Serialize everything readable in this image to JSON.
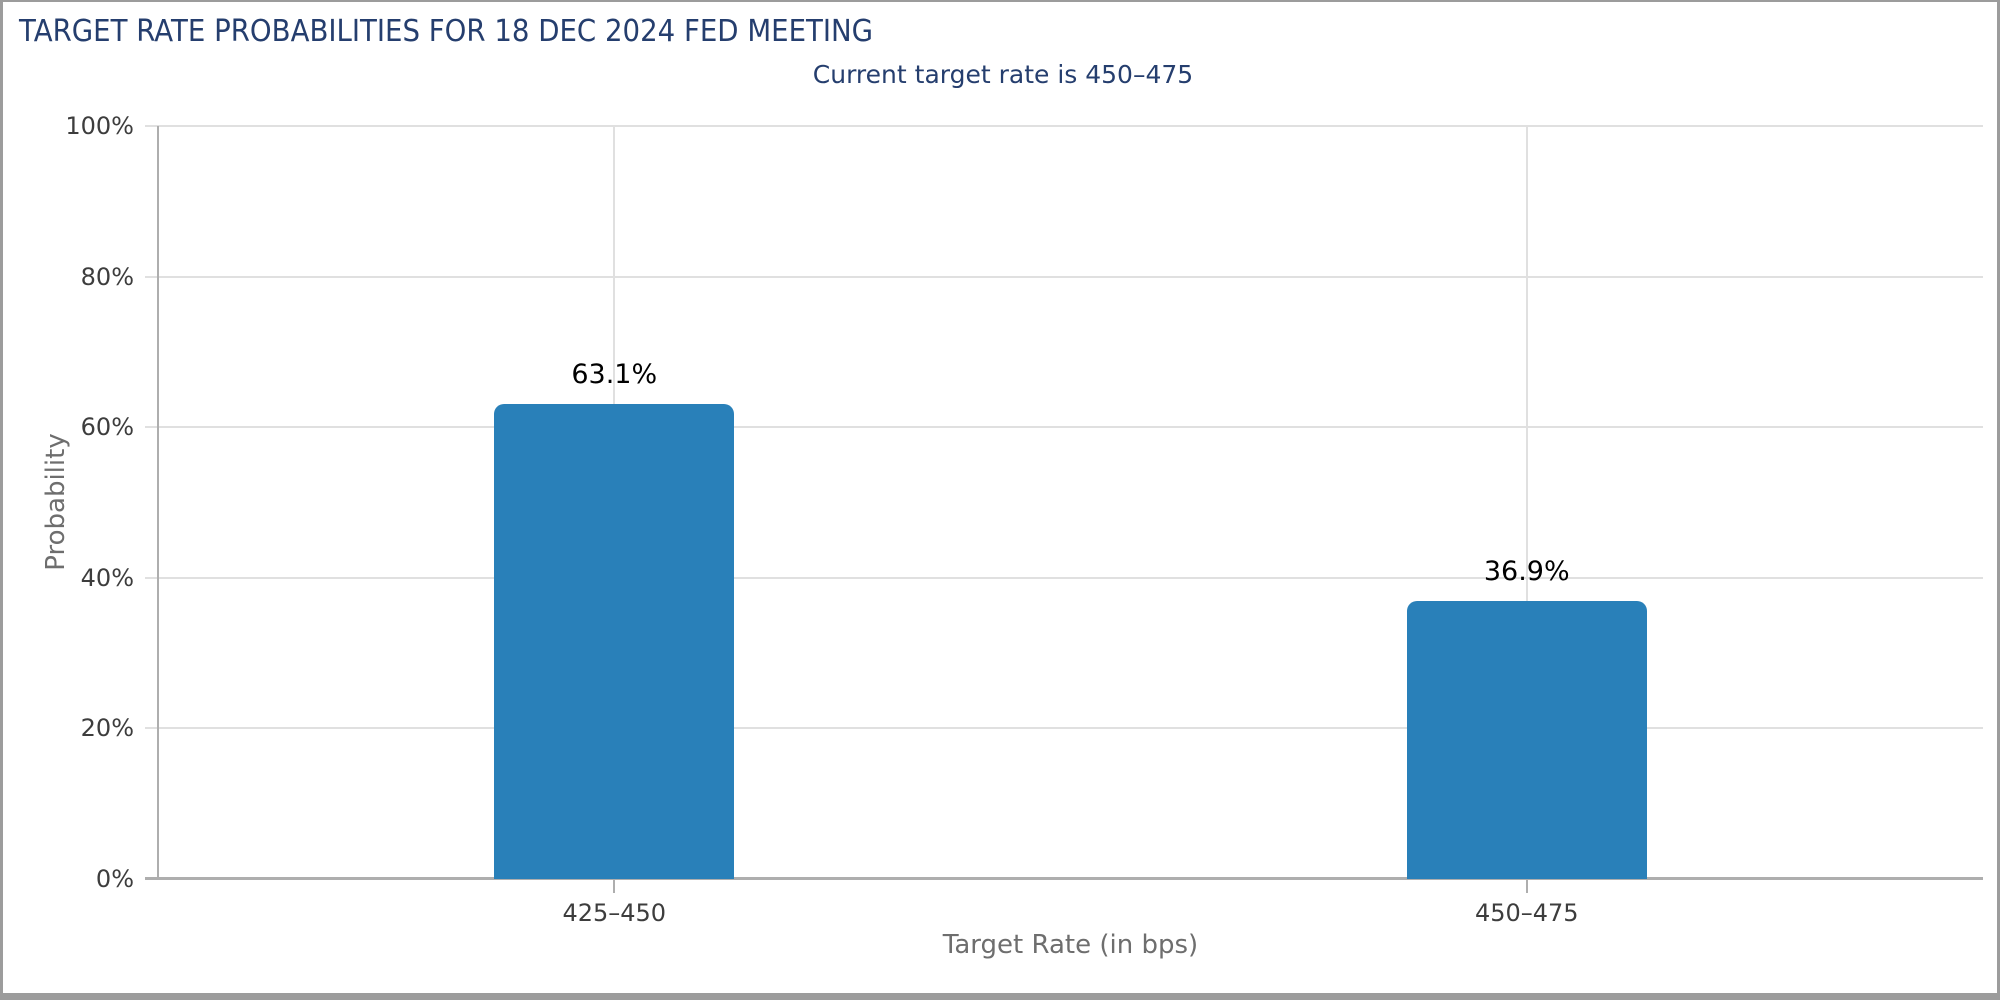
{
  "title": "TARGET RATE PROBABILITIES FOR 18 DEC 2024 FED MEETING",
  "subtitle": "Current target rate is 450–475",
  "chart_data": {
    "type": "bar",
    "title": "TARGET RATE PROBABILITIES FOR 18 DEC 2024 FED MEETING",
    "subtitle": "Current target rate is 450–475",
    "categories": [
      "425–450",
      "450–475"
    ],
    "values": [
      63.1,
      36.9
    ],
    "value_labels": [
      "63.1%",
      "36.9%"
    ],
    "xlabel": "Target Rate (in bps)",
    "ylabel": "Probability",
    "ylim": [
      0,
      100
    ],
    "yticks": [
      0,
      20,
      40,
      60,
      80,
      100
    ],
    "ytick_labels": [
      "0%",
      "20%",
      "40%",
      "60%",
      "80%",
      "100%"
    ],
    "grid": true,
    "legend": "none"
  },
  "colors": {
    "title_text": "#253e6e",
    "subtitle_text": "#253e6e",
    "bar_fill": "#2980b9",
    "gridline": "#e0e0e0",
    "axis_line": "#aeaeae",
    "tick_label": "#3d3d3d",
    "axis_title": "#6e6e6e",
    "data_label": "#000000",
    "frame_border": "#9c9c9c",
    "background": "#ffffff"
  }
}
